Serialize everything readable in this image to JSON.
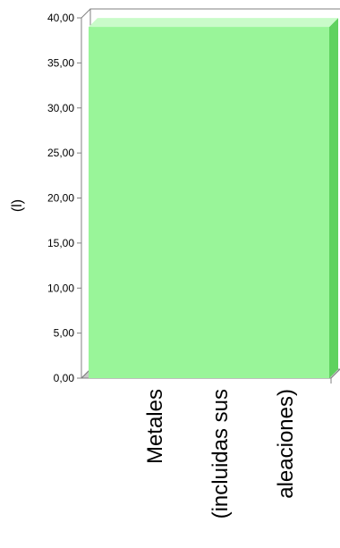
{
  "chart_data": {
    "type": "bar",
    "categories": [
      "Metales (incluidas sus aleaciones)"
    ],
    "category_label_lines": [
      "Metales",
      "(incluidas sus",
      "aleaciones)"
    ],
    "series": [
      {
        "values": [
          39.0
        ]
      }
    ],
    "ylabel": "(l)",
    "ylim": [
      0,
      40
    ],
    "yticks": [
      "0,00",
      "5,00",
      "10,00",
      "15,00",
      "20,00",
      "25,00",
      "30,00",
      "35,00",
      "40,00"
    ],
    "tick_values": [
      0,
      5,
      10,
      15,
      20,
      25,
      30,
      35,
      40
    ],
    "grid": false,
    "three_d": true,
    "colors": {
      "bar_front": "#99f599",
      "bar_top": "#c9fbc9",
      "bar_side": "#5fd25f",
      "axis": "#808080",
      "floor": "#c8c8c8"
    }
  }
}
